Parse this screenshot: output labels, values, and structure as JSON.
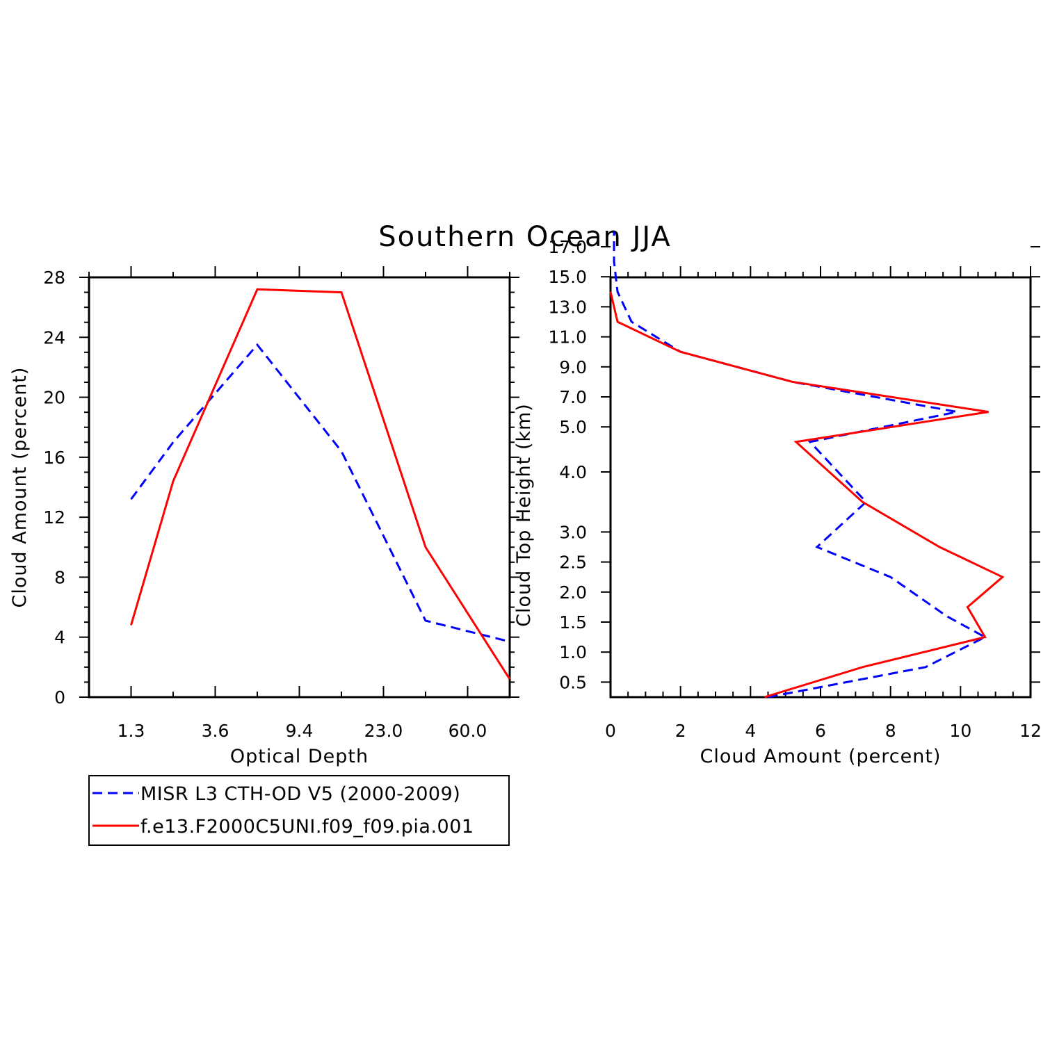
{
  "title": "Southern Ocean JJA",
  "colors": {
    "obs": "#0000ff",
    "model": "#ff0000",
    "axis": "#000000"
  },
  "legend": {
    "entries": [
      {
        "label": "MISR L3 CTH-OD V5 (2000-2009)",
        "color": "#0000ff",
        "style": "dashed"
      },
      {
        "label": "f.e13.F2000C5UNI.f09_f09.pia.001",
        "color": "#ff0000",
        "style": "solid"
      }
    ]
  },
  "chart_data": [
    {
      "type": "line",
      "xlabel": "Optical Depth",
      "ylabel": "Cloud Amount (percent)",
      "x": [
        0.5,
        1.3,
        2.3,
        3.6,
        6.0,
        9.4,
        15.0,
        23.0,
        41.0,
        60.0,
        80.0
      ],
      "xtick_labels": [
        "",
        "1.3",
        "",
        "3.6",
        "",
        "9.4",
        "",
        "23.0",
        "",
        "60.0",
        ""
      ],
      "yticks": [
        0,
        4,
        8,
        12,
        16,
        20,
        24,
        28
      ],
      "ylim": [
        0,
        28
      ],
      "grid": false,
      "series": [
        {
          "name": "MISR L3 CTH-OD V5 (2000-2009)",
          "values": [
            null,
            13.2,
            17.0,
            null,
            23.5,
            null,
            16.4,
            null,
            5.1,
            null,
            3.7
          ]
        },
        {
          "name": "f.e13.F2000C5UNI.f09_f09.pia.001",
          "values": [
            null,
            4.8,
            14.4,
            null,
            27.2,
            null,
            27.0,
            null,
            10.0,
            null,
            1.2
          ]
        }
      ]
    },
    {
      "type": "line",
      "xlabel": "Cloud Amount (percent)",
      "ylabel": "Cloud Top Height (km)",
      "xlim": [
        0,
        12
      ],
      "xticks": [
        0,
        2,
        4,
        6,
        8,
        10,
        12
      ],
      "y_levels": [
        0.25,
        0.5,
        0.75,
        1.0,
        1.25,
        1.5,
        1.75,
        2.0,
        2.25,
        2.5,
        2.75,
        3.0,
        3.25,
        3.5,
        3.75,
        4.0,
        4.25,
        4.5,
        5.0,
        6.0,
        7.0,
        8.0,
        9.0,
        10.0,
        11.0,
        12.0,
        13.0,
        14.0,
        15.0,
        16.0,
        17.0,
        18.0
      ],
      "ytick_labels": [
        "0.5",
        "1.0",
        "1.5",
        "2.0",
        "2.5",
        "3.0",
        "4.0",
        "5.0",
        "7.0",
        "9.0",
        "11.0",
        "13.0",
        "15.0",
        "17.0"
      ],
      "grid": false,
      "series": [
        {
          "name": "MISR L3 CTH-OD V5 (2000-2009)",
          "points": [
            [
              4.5,
              0.25
            ],
            [
              7.2,
              0.55
            ],
            [
              9.0,
              0.75
            ],
            [
              10.7,
              1.25
            ],
            [
              9.6,
              1.6
            ],
            [
              8.0,
              2.25
            ],
            [
              5.9,
              2.75
            ],
            [
              7.3,
              3.5
            ],
            [
              5.7,
              4.5
            ],
            [
              9.9,
              6.0
            ],
            [
              5.2,
              8.0
            ],
            [
              2.0,
              10.0
            ],
            [
              0.6,
              12.0
            ],
            [
              0.2,
              14.0
            ],
            [
              0.1,
              16.0
            ],
            [
              0.1,
              18.0
            ]
          ]
        },
        {
          "name": "f.e13.F2000C5UNI.f09_f09.pia.001",
          "points": [
            [
              4.4,
              0.25
            ],
            [
              7.2,
              0.75
            ],
            [
              10.7,
              1.25
            ],
            [
              10.2,
              1.75
            ],
            [
              11.2,
              2.25
            ],
            [
              9.4,
              2.75
            ],
            [
              7.2,
              3.5
            ],
            [
              5.3,
              4.5
            ],
            [
              10.8,
              6.0
            ],
            [
              5.2,
              8.0
            ],
            [
              2.0,
              10.0
            ],
            [
              0.2,
              12.0
            ],
            [
              0.0,
              14.0
            ]
          ]
        }
      ]
    }
  ]
}
